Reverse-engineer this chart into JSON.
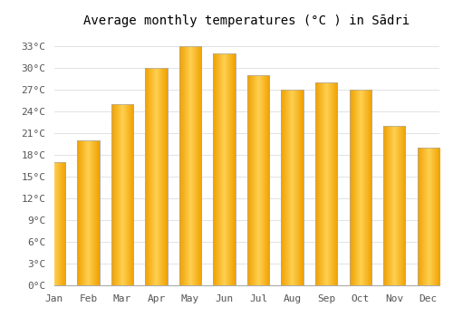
{
  "title": "Average monthly temperatures (°C ) in Sādri",
  "months": [
    "Jan",
    "Feb",
    "Mar",
    "Apr",
    "May",
    "Jun",
    "Jul",
    "Aug",
    "Sep",
    "Oct",
    "Nov",
    "Dec"
  ],
  "values": [
    17,
    20,
    25,
    30,
    33,
    32,
    29,
    27,
    28,
    27,
    22,
    19
  ],
  "bar_color_center": "#FFD050",
  "bar_color_edge": "#F0A000",
  "background_color": "#FFFFFF",
  "grid_color": "#dddddd",
  "ylim": [
    0,
    35
  ],
  "yticks": [
    0,
    3,
    6,
    9,
    12,
    15,
    18,
    21,
    24,
    27,
    30,
    33
  ],
  "ytick_labels": [
    "0°C",
    "3°C",
    "6°C",
    "9°C",
    "12°C",
    "15°C",
    "18°C",
    "21°C",
    "24°C",
    "27°C",
    "30°C",
    "33°C"
  ],
  "title_fontsize": 10,
  "tick_fontsize": 8,
  "font_family": "monospace",
  "spine_color": "#aaaaaa"
}
